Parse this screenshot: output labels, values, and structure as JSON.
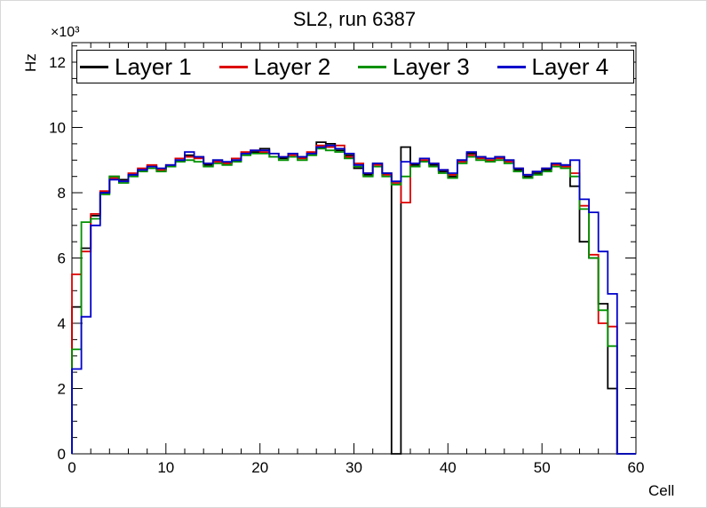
{
  "title": "SL2, run 6387",
  "axes": {
    "x_label": "Cell",
    "y_label": "Hz",
    "y_multiplier_label": "×10³",
    "x_ticks": [
      0,
      10,
      20,
      30,
      40,
      50,
      60
    ],
    "y_ticks": [
      0,
      2,
      4,
      6,
      8,
      10,
      12
    ],
    "xlim": [
      0,
      60
    ],
    "ylim": [
      0,
      12.6
    ]
  },
  "chart_data": {
    "type": "line",
    "style": "step-histogram",
    "title": "SL2, run 6387",
    "xlabel": "Cell",
    "ylabel": "Hz",
    "y_units": "10^3 Hz",
    "bin_start": 0,
    "bin_width": 1,
    "n_bins": 60,
    "xlim": [
      0,
      60
    ],
    "ylim": [
      0,
      12.6
    ],
    "grid": false,
    "legend_position": "top-inside-horizontal",
    "series": [
      {
        "name": "Layer 1",
        "color": "#000000",
        "values": [
          4.5,
          6.3,
          7.3,
          8.0,
          8.5,
          8.4,
          8.55,
          8.7,
          8.8,
          8.7,
          8.8,
          9.0,
          9.15,
          9.1,
          8.85,
          9.0,
          8.9,
          9.0,
          9.2,
          9.25,
          9.35,
          9.1,
          9.05,
          9.2,
          9.1,
          9.2,
          9.55,
          9.5,
          9.3,
          9.15,
          8.75,
          8.55,
          8.9,
          8.6,
          0.0,
          9.4,
          8.85,
          9.0,
          8.85,
          8.65,
          8.5,
          9.0,
          9.2,
          9.1,
          9.0,
          9.1,
          9.0,
          8.7,
          8.5,
          8.6,
          8.7,
          8.9,
          8.85,
          8.2,
          6.5,
          6.0,
          4.6,
          2.0,
          0.0,
          0.0
        ]
      },
      {
        "name": "Layer 2",
        "color": "#dd0000",
        "values": [
          5.5,
          6.2,
          7.35,
          8.05,
          8.45,
          8.35,
          8.6,
          8.75,
          8.85,
          8.7,
          8.85,
          9.05,
          9.1,
          9.05,
          8.9,
          8.95,
          8.9,
          9.05,
          9.25,
          9.3,
          9.25,
          9.2,
          9.1,
          9.15,
          9.05,
          9.25,
          9.45,
          9.4,
          9.45,
          9.1,
          8.9,
          8.6,
          8.85,
          8.55,
          8.3,
          7.7,
          8.9,
          9.0,
          8.9,
          8.7,
          8.55,
          8.95,
          9.15,
          9.05,
          9.0,
          9.05,
          8.95,
          8.75,
          8.55,
          8.65,
          8.75,
          8.85,
          8.8,
          8.6,
          7.6,
          6.1,
          4.0,
          3.9,
          0.0,
          0.0
        ]
      },
      {
        "name": "Layer 3",
        "color": "#009100",
        "values": [
          3.2,
          7.1,
          7.2,
          7.95,
          8.5,
          8.3,
          8.5,
          8.65,
          8.75,
          8.65,
          8.8,
          8.95,
          9.0,
          8.95,
          8.8,
          8.9,
          8.85,
          8.95,
          9.15,
          9.2,
          9.2,
          9.1,
          9.0,
          9.1,
          9.0,
          9.15,
          9.35,
          9.3,
          9.25,
          9.05,
          8.8,
          8.5,
          8.8,
          8.5,
          8.25,
          8.5,
          8.8,
          8.95,
          8.8,
          8.6,
          8.45,
          8.9,
          9.1,
          9.0,
          8.95,
          9.0,
          8.9,
          8.65,
          8.45,
          8.55,
          8.65,
          8.8,
          8.75,
          8.5,
          7.5,
          6.0,
          4.4,
          3.3,
          0.0,
          0.0
        ]
      },
      {
        "name": "Layer 4",
        "color": "#0000cc",
        "values": [
          2.6,
          4.2,
          7.0,
          8.0,
          8.4,
          8.35,
          8.55,
          8.7,
          8.8,
          8.75,
          8.85,
          9.0,
          9.25,
          9.1,
          8.9,
          9.0,
          8.95,
          9.0,
          9.2,
          9.3,
          9.3,
          9.2,
          9.1,
          9.2,
          9.1,
          9.2,
          9.4,
          9.45,
          9.35,
          9.2,
          8.85,
          8.6,
          8.9,
          8.6,
          8.35,
          8.95,
          8.9,
          9.05,
          8.9,
          8.7,
          8.6,
          9.0,
          9.25,
          9.1,
          9.05,
          9.1,
          9.0,
          8.75,
          8.55,
          8.65,
          8.75,
          8.9,
          8.85,
          9.0,
          7.8,
          7.4,
          6.2,
          4.9,
          0.0,
          0.0
        ]
      }
    ]
  }
}
